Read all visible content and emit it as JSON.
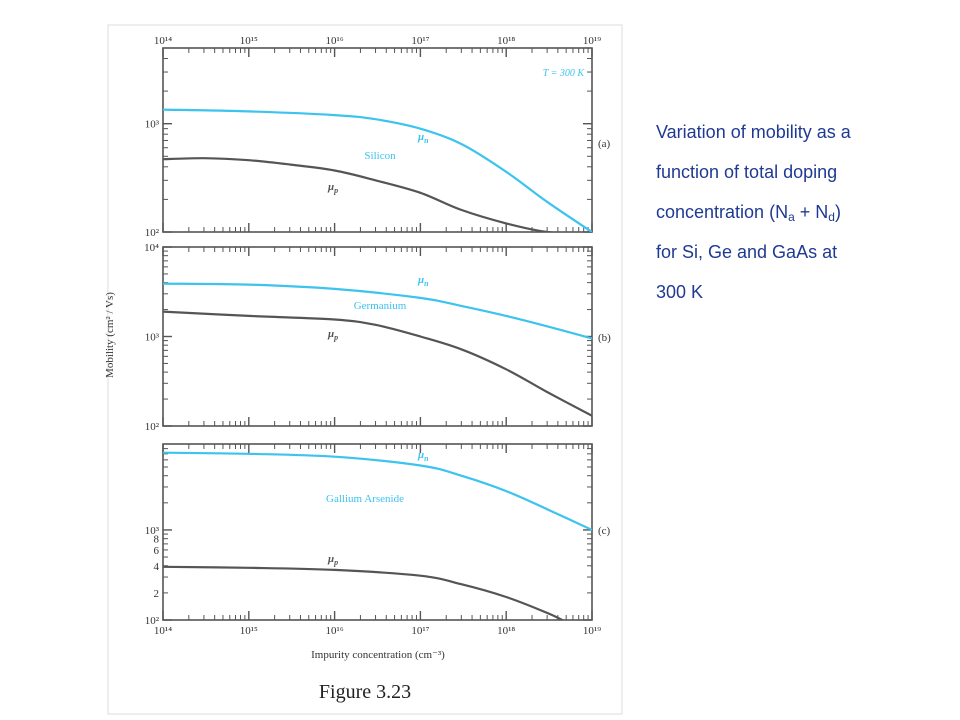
{
  "figure": {
    "label": "Figure 3.23",
    "ylabel": "Mobility (cm² / Vs)",
    "xlabel": "Impurity concentration (cm⁻³)",
    "temperature_label": "T = 300 K"
  },
  "caption": {
    "line1": "Variation of mobility as a",
    "line2": "function of total doping",
    "line3_pre": "concentration (N",
    "sub_a": "a",
    "plus": " + N",
    "sub_d": "d",
    "line3_post": ")",
    "line4": "for Si, Ge and GaAs at",
    "line5": "300 K"
  },
  "colors": {
    "electron": "#3cc3ee",
    "hole": "#555555",
    "axes": "#555555",
    "caption": "#1f3a93"
  },
  "chart_data": [
    {
      "type": "line",
      "panel_label": "(a)",
      "material": "Silicon",
      "x_scale": "log",
      "y_scale": "log",
      "xlim": [
        100000000000000.0,
        1e+19
      ],
      "ylim": [
        100,
        5000
      ],
      "x_tick_labels": [
        "10¹⁴",
        "10¹⁵",
        "10¹⁶",
        "10¹⁷",
        "10¹⁸",
        "10¹⁹"
      ],
      "y_tick_labels": [
        {
          "v": 1000,
          "t": "10³"
        },
        {
          "v": 100,
          "t": "10²"
        }
      ],
      "series": [
        {
          "name": "μn",
          "carrier": "electron",
          "x": [
            100000000000000.0,
            1000000000000000.0,
            1e+16,
            3e+16,
            1e+17,
            3e+17,
            1e+18,
            3e+18,
            1e+19
          ],
          "y": [
            1350,
            1300,
            1200,
            1100,
            900,
            650,
            360,
            190,
            100
          ]
        },
        {
          "name": "μp",
          "carrier": "hole",
          "x": [
            100000000000000.0,
            300000000000000.0,
            1000000000000000.0,
            3000000000000000.0,
            1e+16,
            3e+16,
            1e+17,
            3e+17,
            1e+18,
            3e+18,
            1e+19
          ],
          "y": [
            470,
            480,
            460,
            420,
            370,
            300,
            230,
            160,
            120,
            100,
            95
          ]
        }
      ]
    },
    {
      "type": "line",
      "panel_label": "(b)",
      "material": "Germanium",
      "x_scale": "log",
      "y_scale": "log",
      "xlim": [
        100000000000000.0,
        1e+19
      ],
      "ylim": [
        100,
        10000
      ],
      "x_tick_labels": [],
      "y_tick_labels": [
        {
          "v": 10000,
          "t": "10⁴"
        },
        {
          "v": 1000,
          "t": "10³"
        },
        {
          "v": 100,
          "t": "10²"
        }
      ],
      "series": [
        {
          "name": "μn",
          "carrier": "electron",
          "x": [
            100000000000000.0,
            1000000000000000.0,
            1e+16,
            1e+17,
            3e+17,
            1e+18,
            3e+18,
            1e+19
          ],
          "y": [
            3900,
            3800,
            3400,
            2700,
            2200,
            1700,
            1300,
            950
          ]
        },
        {
          "name": "μp",
          "carrier": "hole",
          "x": [
            100000000000000.0,
            1000000000000000.0,
            1e+16,
            3e+16,
            1e+17,
            3e+17,
            1e+18,
            3e+18,
            1e+19
          ],
          "y": [
            1900,
            1700,
            1550,
            1350,
            1000,
            720,
            430,
            240,
            130
          ]
        }
      ]
    },
    {
      "type": "line",
      "panel_label": "(c)",
      "material": "Gallium Arsenide",
      "x_scale": "log",
      "y_scale": "log",
      "xlim": [
        100000000000000.0,
        1e+19
      ],
      "ylim": [
        100,
        9000
      ],
      "x_tick_labels": [
        "10¹⁴",
        "10¹⁵",
        "10¹⁶",
        "10¹⁷",
        "10¹⁸",
        "10¹⁹"
      ],
      "y_tick_labels": [
        {
          "v": 1000,
          "t": "10³"
        },
        {
          "v": 800,
          "t": "8"
        },
        {
          "v": 600,
          "t": "6"
        },
        {
          "v": 400,
          "t": "4"
        },
        {
          "v": 200,
          "t": "2"
        },
        {
          "v": 100,
          "t": "10²"
        }
      ],
      "series": [
        {
          "name": "μn",
          "carrier": "electron",
          "x": [
            100000000000000.0,
            1000000000000000.0,
            1e+16,
            1e+17,
            3e+17,
            1e+18,
            3e+18,
            1e+19
          ],
          "y": [
            7200,
            7000,
            6500,
            5200,
            4000,
            2700,
            1700,
            1000
          ]
        },
        {
          "name": "μp",
          "carrier": "hole",
          "x": [
            100000000000000.0,
            1000000000000000.0,
            1e+16,
            1e+17,
            3e+17,
            1e+18,
            3e+18,
            5e+18
          ],
          "y": [
            390,
            380,
            360,
            310,
            250,
            180,
            120,
            95
          ]
        }
      ]
    }
  ]
}
